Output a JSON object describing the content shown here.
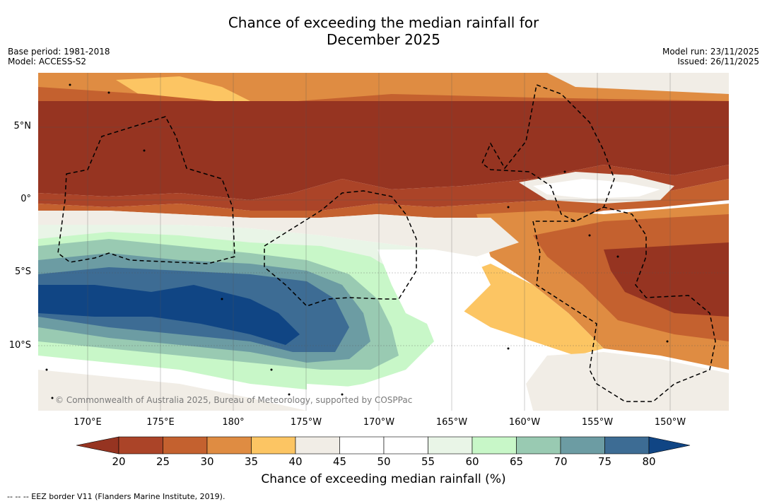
{
  "title": {
    "line1": "Chance of exceeding the median rainfall for",
    "line2": "December 2025"
  },
  "meta": {
    "base_period": "Base period: 1981-2018",
    "model": "Model: ACCESS-S2",
    "model_run": "Model run: 23/11/2025",
    "issued": "Issued: 26/11/2025"
  },
  "map": {
    "lat_labels": [
      "5°N",
      "0°",
      "5°S",
      "10°S"
    ],
    "lon_labels": [
      "170°E",
      "175°E",
      "180°",
      "175°W",
      "170°W",
      "165°W",
      "160°W",
      "155°W",
      "150°W"
    ],
    "copyright": "© Commonwealth of Australia 2025, Bureau of Meteorology, supported by COSPPac"
  },
  "colorbar": {
    "ticks": [
      "20",
      "25",
      "30",
      "35",
      "40",
      "45",
      "50",
      "55",
      "60",
      "65",
      "70",
      "75",
      "80"
    ],
    "colors": [
      "#963421",
      "#ab4428",
      "#c4612f",
      "#df8c42",
      "#fcc563",
      "#f1ede6",
      "#ffffff",
      "#ffffff",
      "#e9f5e7",
      "#c8f7c8",
      "#99cab2",
      "#6c9ca3",
      "#3d6c94",
      "#104584"
    ],
    "label": "Chance of exceeding median rainfall (%)"
  },
  "legend": {
    "text": "--  --  -- EEZ border V11 (Flanders Marine Institute, 2019)."
  }
}
